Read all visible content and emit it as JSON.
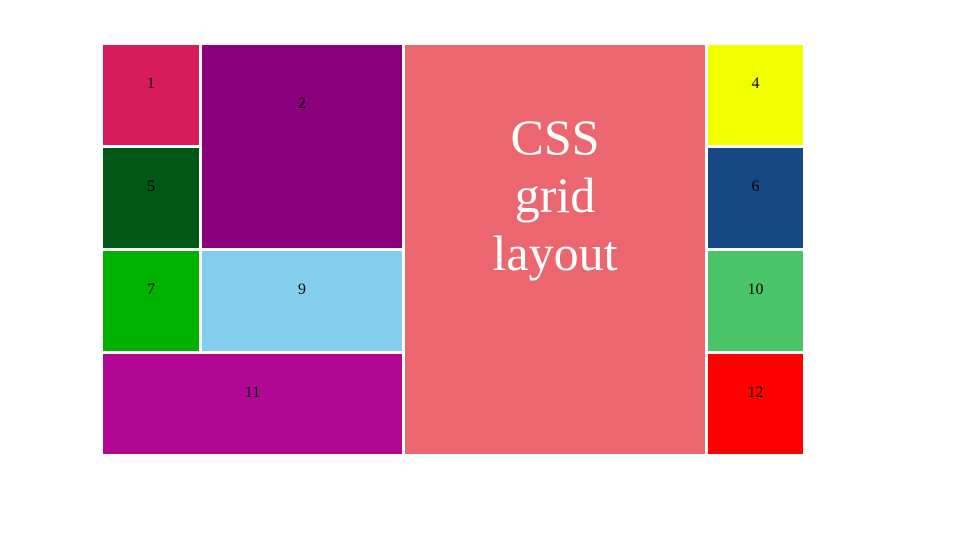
{
  "cells": {
    "c1": {
      "label": "1",
      "color": "#d81b5b"
    },
    "c2": {
      "label": "2",
      "color": "#8b007c"
    },
    "c3": {
      "label": "CSS grid layout",
      "color": "#ec6670"
    },
    "c4": {
      "label": "4",
      "color": "#f2ff00"
    },
    "c5": {
      "label": "5",
      "color": "#005716"
    },
    "c6": {
      "label": "6",
      "color": "#164883"
    },
    "c7": {
      "label": "7",
      "color": "#00b200"
    },
    "c9": {
      "label": "9",
      "color": "#82ceec"
    },
    "c10": {
      "label": "10",
      "color": "#4ac468"
    },
    "c11": {
      "label": "11",
      "color": "#b10794"
    },
    "c12": {
      "label": "12",
      "color": "#ff0000"
    }
  }
}
